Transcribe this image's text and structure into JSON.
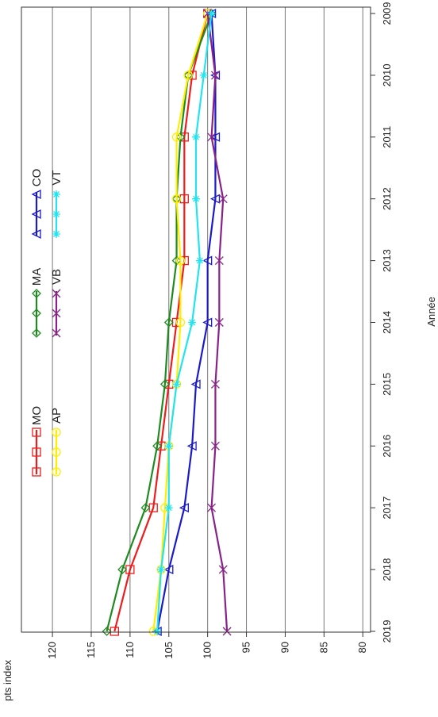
{
  "chart_data": {
    "type": "line",
    "orientation": "rotated-90",
    "title": "",
    "xlabel": "Année",
    "ylabel": "pts index",
    "x": [
      2009,
      2010,
      2011,
      2012,
      2013,
      2014,
      2015,
      2016,
      2017,
      2018,
      2019
    ],
    "x_tick_labels": [
      "2009",
      "2010",
      "2011",
      "2012",
      "2013",
      "2014",
      "2015",
      "2016",
      "2017",
      "2018",
      "2019"
    ],
    "ylim": [
      79,
      124
    ],
    "y_ticks": [
      80,
      85,
      90,
      95,
      100,
      105,
      110,
      115,
      120
    ],
    "y_tick_labels": [
      "80",
      "85",
      "90",
      "95",
      "100",
      "105",
      "110",
      "115",
      "120"
    ],
    "grid": true,
    "legend_position": "top-left",
    "series": [
      {
        "name": "MO",
        "color": "#ee1c1c",
        "marker": "square",
        "values": [
          100,
          102,
          103,
          103,
          103,
          104,
          105,
          106,
          107,
          110,
          112
        ]
      },
      {
        "name": "MA",
        "color": "#1f8a1f",
        "marker": "diamond",
        "values": [
          99.5,
          102.5,
          103.5,
          104,
          104,
          105,
          105.5,
          106.5,
          108,
          111,
          113
        ]
      },
      {
        "name": "CO",
        "color": "#1a1acc",
        "marker": "triangle",
        "values": [
          99.5,
          99,
          99,
          99,
          100,
          100,
          101.5,
          102,
          103,
          105,
          106.5
        ]
      },
      {
        "name": "AP",
        "color": "#ffee00",
        "marker": "circle",
        "values": [
          100,
          102.5,
          104,
          104,
          103.5,
          103.5,
          104,
          105,
          105.5,
          106,
          107
        ]
      },
      {
        "name": "VB",
        "color": "#882288",
        "marker": "x",
        "values": [
          100,
          99,
          99.5,
          98,
          98.5,
          98.5,
          99,
          99,
          99.5,
          98,
          97.5
        ]
      },
      {
        "name": "VT",
        "color": "#22e4ee",
        "marker": "star",
        "values": [
          99.5,
          100.5,
          101.5,
          101.5,
          101,
          102,
          104,
          105,
          105,
          106,
          106.5
        ]
      }
    ]
  }
}
